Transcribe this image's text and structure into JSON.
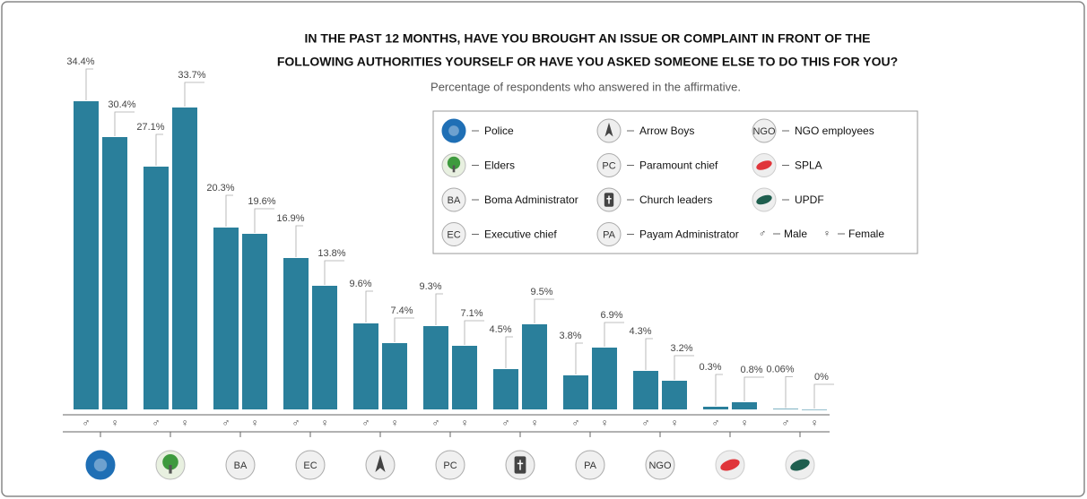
{
  "chart_data": {
    "type": "bar",
    "title_lines": [
      "IN THE PAST 12 MONTHS, HAVE YOU BROUGHT AN ISSUE OR COMPLAINT IN FRONT OF THE",
      "FOLLOWING AUTHORITIES YOURSELF OR HAVE YOU ASKED SOMEONE ELSE TO DO THIS FOR YOU?"
    ],
    "subtitle": "Percentage of respondents who answered in the affirmative.",
    "categories": [
      "Police",
      "Elders",
      "Boma Administrator",
      "Executive chief",
      "Arrow Boys",
      "Paramount chief",
      "Church leaders",
      "Payam Administrator",
      "NGO employees",
      "SPLA",
      "UPDF"
    ],
    "category_abbreviations": [
      null,
      null,
      "BA",
      "EC",
      null,
      "PC",
      null,
      "PA",
      "NGO",
      null,
      null
    ],
    "series": [
      {
        "name": "Male",
        "symbol": "♂",
        "color": "#2a7f9b",
        "values": [
          34.4,
          27.1,
          20.3,
          16.9,
          9.6,
          9.3,
          4.5,
          3.8,
          4.3,
          0.3,
          0.06
        ],
        "value_labels": [
          "34.4%",
          "27.1%",
          "20.3%",
          "16.9%",
          "9.6%",
          "9.3%",
          "4.5%",
          "3.8%",
          "4.3%",
          "0.3%",
          "0.06%"
        ]
      },
      {
        "name": "Female",
        "symbol": "♀",
        "color": "#2a7f9b",
        "values": [
          30.4,
          33.7,
          19.6,
          13.8,
          7.4,
          7.1,
          9.5,
          6.9,
          3.2,
          0.8,
          0
        ],
        "value_labels": [
          "30.4%",
          "33.7%",
          "19.6%",
          "13.8%",
          "7.4%",
          "7.1%",
          "9.5%",
          "6.9%",
          "3.2%",
          "0.8%",
          "0%"
        ]
      }
    ],
    "ylim": [
      0,
      35
    ]
  }
}
